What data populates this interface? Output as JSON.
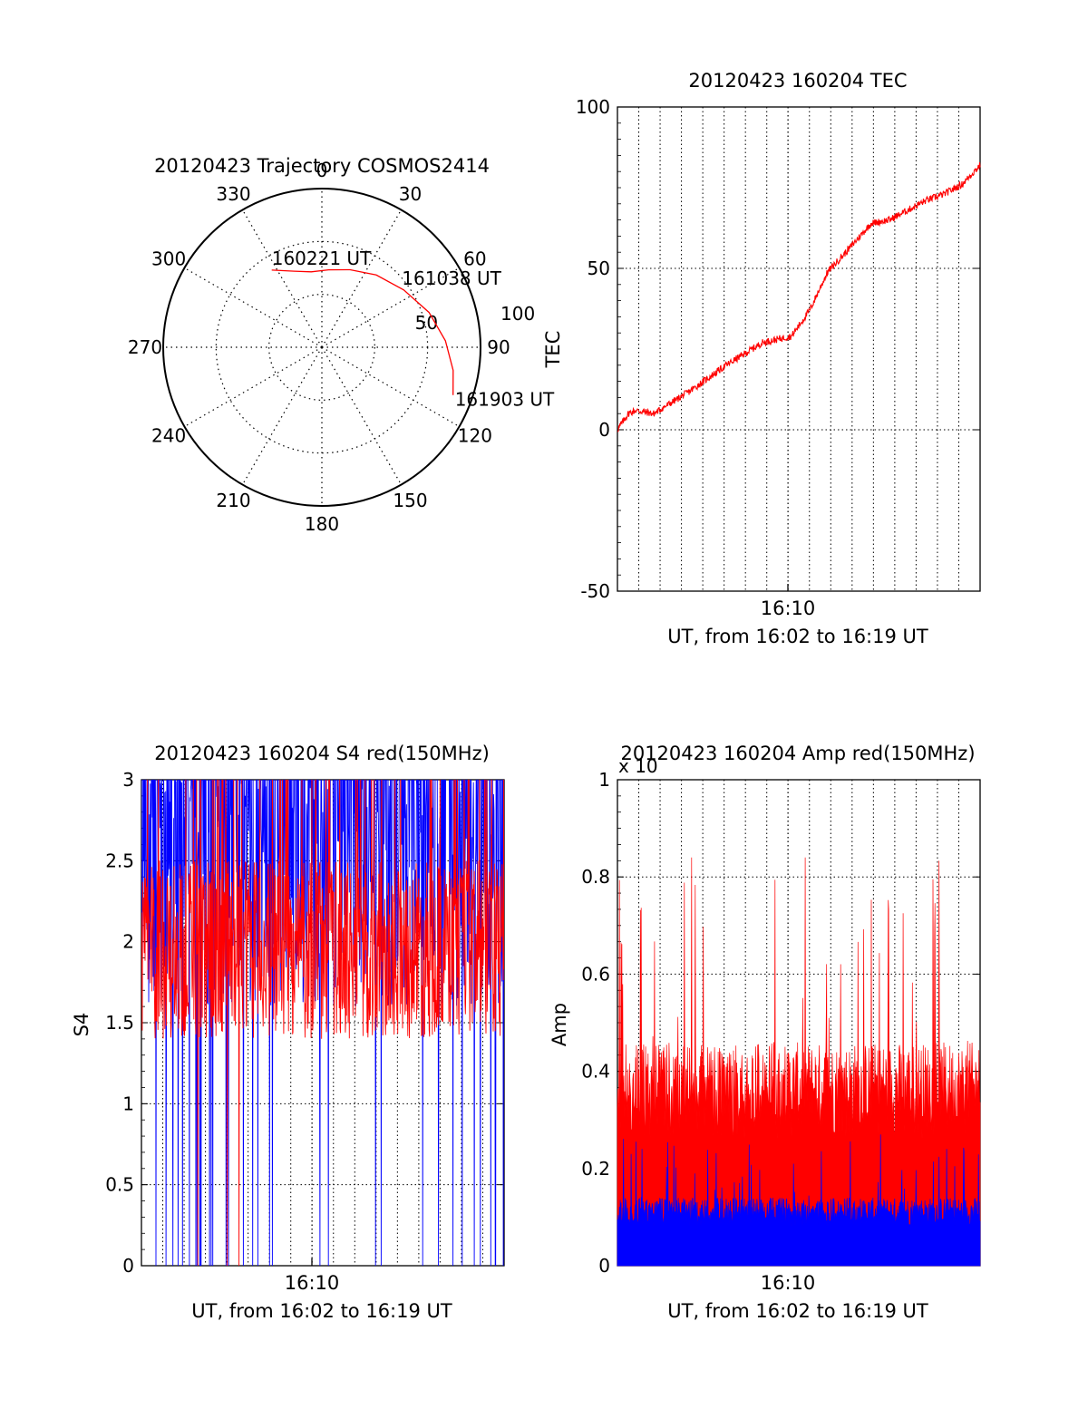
{
  "colors": {
    "primary": "#ff0000",
    "secondary": "#0000ff",
    "axis": "#000000",
    "grid": "#000000"
  },
  "chart_data": [
    {
      "type": "polar",
      "title": "20120423 Trajectory COSMOS2414",
      "angle_ticks": [
        "0",
        "30",
        "60",
        "90",
        "120",
        "150",
        "180",
        "210",
        "240",
        "270",
        "300",
        "330"
      ],
      "radial_ticks": [
        "50",
        "100"
      ],
      "track": {
        "points": [
          {
            "az": 327,
            "r": 58
          },
          {
            "az": 340,
            "r": 51
          },
          {
            "az": 352,
            "r": 48
          },
          {
            "az": 5,
            "r": 49
          },
          {
            "az": 20,
            "r": 52
          },
          {
            "az": 37,
            "r": 57
          },
          {
            "az": 55,
            "r": 63
          },
          {
            "az": 72,
            "r": 71
          },
          {
            "az": 87,
            "r": 78
          },
          {
            "az": 100,
            "r": 84
          },
          {
            "az": 110,
            "r": 88
          }
        ],
        "labels": [
          {
            "text": "160221 UT",
            "az": 327,
            "r": 58
          },
          {
            "text": "161038 UT",
            "az": 55,
            "r": 63
          },
          {
            "text": "161903 UT",
            "az": 110,
            "r": 88
          }
        ]
      }
    },
    {
      "type": "line",
      "title": "20120423 160204 TEC",
      "xlabel": "UT, from 16:02 to 16:19 UT",
      "ylabel": "TEC",
      "ylim": [
        -50,
        100
      ],
      "yticks": [
        "-50",
        "0",
        "50",
        "100"
      ],
      "xtick": "16:10",
      "series": [
        {
          "values_keyframes": [
            [
              0,
              0
            ],
            [
              3,
              5
            ],
            [
              5,
              6
            ],
            [
              10,
              5
            ],
            [
              20,
              12
            ],
            [
              30,
              20
            ],
            [
              40,
              27
            ],
            [
              48,
              29
            ],
            [
              53,
              37
            ],
            [
              58,
              49
            ],
            [
              63,
              55
            ],
            [
              70,
              64
            ],
            [
              75,
              65
            ],
            [
              80,
              68
            ],
            [
              85,
              71
            ],
            [
              90,
              73
            ],
            [
              95,
              76
            ],
            [
              100,
              82
            ]
          ]
        }
      ]
    },
    {
      "type": "line",
      "title": "20120423 160204 S4 red(150MHz)",
      "xlabel": "UT, from 16:02 to 16:19 UT",
      "ylabel": "S4",
      "ylim": [
        0,
        3
      ],
      "yticks": [
        "0",
        "0.5",
        "1",
        "1.5",
        "2",
        "2.5",
        "3"
      ],
      "xtick": "16:10",
      "series": [
        {
          "mean": 2.5,
          "spread": 0.9
        },
        {
          "mean": 1.95,
          "spread": 0.55
        }
      ]
    },
    {
      "type": "area",
      "title": "20120423 160204 Amp red(150MHz)",
      "xlabel": "UT, from 16:02 to 16:19 UT",
      "ylabel": "Amp",
      "ylim": [
        0,
        1
      ],
      "yticks": [
        "0",
        "0.2",
        "0.4",
        "0.6",
        "0.8",
        "1"
      ],
      "scale_label": "x 10",
      "xtick": "16:10",
      "series": [
        {
          "mean": 0.36,
          "spread": 0.1,
          "max": 0.84
        },
        {
          "mean": 0.11,
          "spread": 0.03,
          "max": 0.27
        }
      ]
    }
  ]
}
